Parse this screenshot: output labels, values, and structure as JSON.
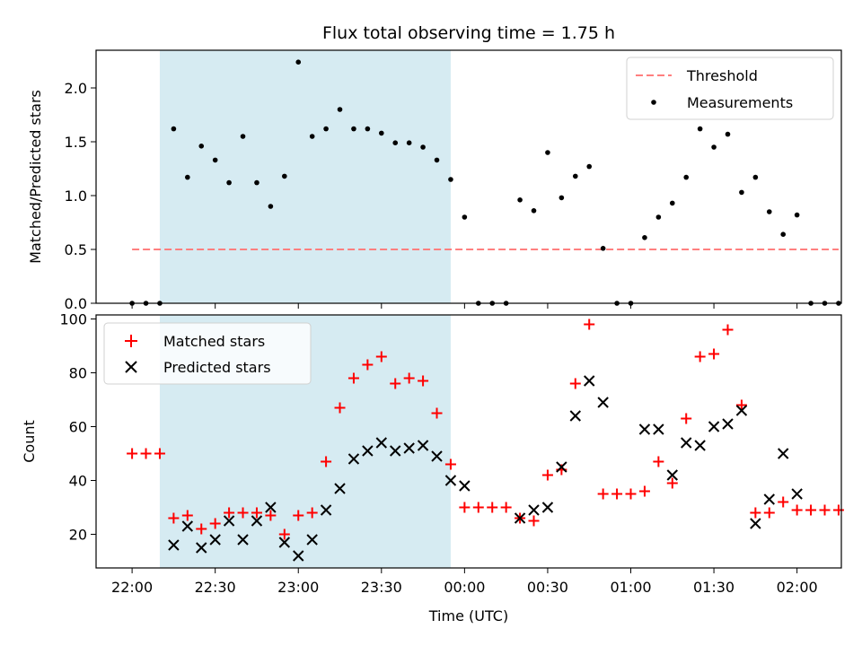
{
  "chart_data": {
    "type": "scatter",
    "title": "Flux total observing time = 1.75 h",
    "xlabel": "Time (UTC)",
    "x_ticks": [
      "22:00",
      "22:30",
      "23:00",
      "23:30",
      "00:00",
      "00:30",
      "01:00",
      "01:30",
      "02:00"
    ],
    "x_tick_minutes": [
      0,
      30,
      60,
      90,
      120,
      150,
      180,
      210,
      240
    ],
    "xlim_minutes": [
      -13,
      256
    ],
    "shaded_span_minutes": [
      10,
      115
    ],
    "shade_color": "#add8e6",
    "panels": [
      {
        "ylabel": "Matched/Predicted stars",
        "ylim": [
          0,
          2.35
        ],
        "y_ticks": [
          0.0,
          0.5,
          1.0,
          1.5,
          2.0
        ],
        "y_tick_labels": [
          "0.0",
          "0.5",
          "1.0",
          "1.5",
          "2.0"
        ],
        "threshold": {
          "name": "Threshold",
          "value": 0.5,
          "x_range": [
            0,
            255
          ],
          "color": "#ff7f7f"
        },
        "legend_placement": "upper right",
        "series": [
          {
            "name": "Measurements",
            "color": "#000000",
            "marker": "dot",
            "points": [
              [
                0,
                0
              ],
              [
                5,
                0
              ],
              [
                10,
                0
              ],
              [
                15,
                1.62
              ],
              [
                20,
                1.17
              ],
              [
                25,
                1.46
              ],
              [
                30,
                1.33
              ],
              [
                35,
                1.12
              ],
              [
                40,
                1.55
              ],
              [
                45,
                1.12
              ],
              [
                50,
                0.9
              ],
              [
                55,
                1.18
              ],
              [
                60,
                2.24
              ],
              [
                65,
                1.55
              ],
              [
                70,
                1.62
              ],
              [
                75,
                1.8
              ],
              [
                80,
                1.62
              ],
              [
                85,
                1.62
              ],
              [
                90,
                1.58
              ],
              [
                95,
                1.49
              ],
              [
                100,
                1.49
              ],
              [
                105,
                1.45
              ],
              [
                110,
                1.33
              ],
              [
                115,
                1.15
              ],
              [
                120,
                0.8
              ],
              [
                125,
                0
              ],
              [
                130,
                0
              ],
              [
                135,
                0
              ],
              [
                140,
                0.96
              ],
              [
                145,
                0.86
              ],
              [
                150,
                1.4
              ],
              [
                155,
                0.98
              ],
              [
                160,
                1.18
              ],
              [
                165,
                1.27
              ],
              [
                170,
                0.51
              ],
              [
                175,
                0
              ],
              [
                180,
                0
              ],
              [
                185,
                0.61
              ],
              [
                190,
                0.8
              ],
              [
                195,
                0.93
              ],
              [
                200,
                1.17
              ],
              [
                205,
                1.62
              ],
              [
                210,
                1.45
              ],
              [
                215,
                1.57
              ],
              [
                220,
                1.03
              ],
              [
                225,
                1.17
              ],
              [
                230,
                0.85
              ],
              [
                235,
                0.64
              ],
              [
                240,
                0.82
              ],
              [
                245,
                0
              ],
              [
                250,
                0
              ],
              [
                255,
                0
              ]
            ]
          }
        ]
      },
      {
        "ylabel": "Count",
        "ylim": [
          7.5,
          101.5
        ],
        "y_ticks": [
          20,
          40,
          60,
          80,
          100
        ],
        "y_tick_labels": [
          "20",
          "40",
          "60",
          "80",
          "100"
        ],
        "legend_placement": "upper left",
        "series": [
          {
            "name": "Matched stars",
            "color": "#ff0000",
            "marker": "plus",
            "points": [
              [
                0,
                50
              ],
              [
                5,
                50
              ],
              [
                10,
                50
              ],
              [
                15,
                26
              ],
              [
                20,
                27
              ],
              [
                25,
                22
              ],
              [
                30,
                24
              ],
              [
                35,
                28
              ],
              [
                40,
                28
              ],
              [
                45,
                28
              ],
              [
                50,
                27
              ],
              [
                55,
                20
              ],
              [
                60,
                27
              ],
              [
                65,
                28
              ],
              [
                70,
                47
              ],
              [
                75,
                67
              ],
              [
                80,
                78
              ],
              [
                85,
                83
              ],
              [
                90,
                86
              ],
              [
                95,
                76
              ],
              [
                100,
                78
              ],
              [
                105,
                77
              ],
              [
                110,
                65
              ],
              [
                115,
                46
              ],
              [
                120,
                30
              ],
              [
                125,
                30
              ],
              [
                130,
                30
              ],
              [
                135,
                30
              ],
              [
                140,
                26
              ],
              [
                145,
                25
              ],
              [
                150,
                42
              ],
              [
                155,
                44
              ],
              [
                160,
                76
              ],
              [
                165,
                98
              ],
              [
                170,
                35
              ],
              [
                175,
                35
              ],
              [
                180,
                35
              ],
              [
                185,
                36
              ],
              [
                190,
                47
              ],
              [
                195,
                39
              ],
              [
                200,
                63
              ],
              [
                205,
                86
              ],
              [
                210,
                87
              ],
              [
                215,
                96
              ],
              [
                220,
                68
              ],
              [
                225,
                28
              ],
              [
                230,
                28
              ],
              [
                235,
                32
              ],
              [
                240,
                29
              ],
              [
                245,
                29
              ],
              [
                250,
                29
              ],
              [
                255,
                29
              ]
            ]
          },
          {
            "name": "Predicted stars",
            "color": "#000000",
            "marker": "x",
            "points": [
              [
                15,
                16
              ],
              [
                20,
                23
              ],
              [
                25,
                15
              ],
              [
                30,
                18
              ],
              [
                35,
                25
              ],
              [
                40,
                18
              ],
              [
                45,
                25
              ],
              [
                50,
                30
              ],
              [
                55,
                17
              ],
              [
                60,
                12
              ],
              [
                65,
                18
              ],
              [
                70,
                29
              ],
              [
                75,
                37
              ],
              [
                80,
                48
              ],
              [
                85,
                51
              ],
              [
                90,
                54
              ],
              [
                95,
                51
              ],
              [
                100,
                52
              ],
              [
                105,
                53
              ],
              [
                110,
                49
              ],
              [
                115,
                40
              ],
              [
                120,
                38
              ],
              [
                140,
                26
              ],
              [
                145,
                29
              ],
              [
                150,
                30
              ],
              [
                155,
                45
              ],
              [
                160,
                64
              ],
              [
                165,
                77
              ],
              [
                170,
                69
              ],
              [
                185,
                59
              ],
              [
                190,
                59
              ],
              [
                195,
                42
              ],
              [
                200,
                54
              ],
              [
                205,
                53
              ],
              [
                210,
                60
              ],
              [
                215,
                61
              ],
              [
                220,
                66
              ],
              [
                225,
                24
              ],
              [
                230,
                33
              ],
              [
                235,
                50
              ],
              [
                240,
                35
              ]
            ]
          }
        ]
      }
    ]
  }
}
